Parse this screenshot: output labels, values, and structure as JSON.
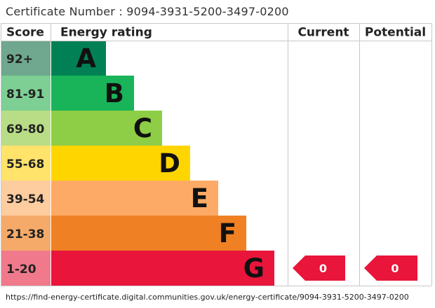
{
  "certificate": {
    "label": "Certificate Number",
    "separator": " : ",
    "number": "9094-3931-5200-3497-0200"
  },
  "source_url": "https://find-energy-certificate.digital.communities.gov.uk/energy-certificate/9094-3931-5200-3497-0200",
  "chart_data": {
    "type": "table",
    "headers": {
      "score": "Score",
      "energy_rating": "Energy rating",
      "current": "Current",
      "potential": "Potential"
    },
    "bands": [
      {
        "band": "A",
        "score_range": "92+",
        "color": "#008054",
        "score_bg": "#6fa88e",
        "score_text": "#222222"
      },
      {
        "band": "B",
        "score_range": "81-91",
        "color": "#19b459",
        "score_bg": "#7dcf94",
        "score_text": "#222222"
      },
      {
        "band": "C",
        "score_range": "69-80",
        "color": "#8dce46",
        "score_bg": "#b8dd86",
        "score_text": "#222222"
      },
      {
        "band": "D",
        "score_range": "55-68",
        "color": "#ffd500",
        "score_bg": "#ffe36a",
        "score_text": "#222222"
      },
      {
        "band": "E",
        "score_range": "39-54",
        "color": "#fcaa65",
        "score_bg": "#fdcc9f",
        "score_text": "#222222"
      },
      {
        "band": "F",
        "score_range": "21-38",
        "color": "#ef8023",
        "score_bg": "#f5aa69",
        "score_text": "#222222"
      },
      {
        "band": "G",
        "score_range": "1-20",
        "color": "#e9153b",
        "score_bg": "#f07a8b",
        "score_text": "#222222"
      }
    ],
    "current": {
      "value": 0,
      "label": "0",
      "band": "G",
      "color": "#e9153b"
    },
    "potential": {
      "value": 0,
      "label": "0",
      "band": "G",
      "color": "#e9153b"
    }
  }
}
